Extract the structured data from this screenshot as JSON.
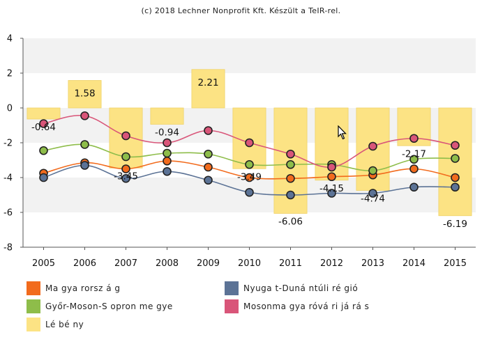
{
  "credit": "(c) 2018 Lechner Nonprofit Kft. Készült a TeIR-rel.",
  "chart_data": {
    "type": "bar+line",
    "categories": [
      "2005",
      "2006",
      "2007",
      "2008",
      "2009",
      "2010",
      "2011",
      "2012",
      "2013",
      "2014",
      "2015"
    ],
    "ylim": [
      -8,
      4
    ],
    "yticks": [
      "4",
      "2",
      "0",
      "-2",
      "-4",
      "-6",
      "-8"
    ],
    "grid": "alternating horizontal bands",
    "legend_position": "bottom",
    "bars": {
      "name": "Lébény",
      "color": "#fce384",
      "values": [
        -0.64,
        1.58,
        -3.45,
        -0.94,
        2.21,
        -3.49,
        -6.06,
        -4.15,
        -4.74,
        -2.17,
        -6.19
      ],
      "labels": [
        "-0.64",
        "1.58",
        "-3.45",
        "-0.94",
        "2.21",
        "-3.49",
        "-6.06",
        "-4.15",
        "-4.74",
        "-2.17",
        "-6.19"
      ]
    },
    "series": [
      {
        "name": "Magyarország",
        "color": "#f26b1d",
        "values": [
          -3.75,
          -3.15,
          -3.5,
          -3.05,
          -3.4,
          -4.0,
          -4.05,
          -3.95,
          -3.85,
          -3.5,
          -4.0
        ]
      },
      {
        "name": "Győr-Moson-Sopron megye",
        "color": "#8ebd4a",
        "values": [
          -2.45,
          -2.1,
          -2.8,
          -2.6,
          -2.65,
          -3.25,
          -3.25,
          -3.25,
          -3.6,
          -2.95,
          -2.9
        ]
      },
      {
        "name": "Nyugat-Dunántúli régió",
        "color": "#5c7396",
        "values": [
          -4.0,
          -3.3,
          -4.05,
          -3.65,
          -4.15,
          -4.85,
          -5.0,
          -4.9,
          -4.9,
          -4.55,
          -4.55
        ]
      },
      {
        "name": "Mosonmagyaróvári járás",
        "color": "#d95579",
        "values": [
          -0.9,
          -0.45,
          -1.6,
          -2.0,
          -1.3,
          -2.0,
          -2.65,
          -3.4,
          -2.2,
          -1.75,
          -2.15
        ]
      }
    ]
  },
  "legend": {
    "items": [
      {
        "label": "Ma gya rorsz á g",
        "color": "#f26b1d"
      },
      {
        "label": "Nyuga t-Duná ntúli ré gió",
        "color": "#5c7396"
      },
      {
        "label": "Győr-Moson-S opron me gye",
        "color": "#8ebd4a"
      },
      {
        "label": "Mosonma gya róvá ri já rá s",
        "color": "#d95579"
      },
      {
        "label": "Lé bé ny",
        "color": "#fce384"
      }
    ]
  }
}
